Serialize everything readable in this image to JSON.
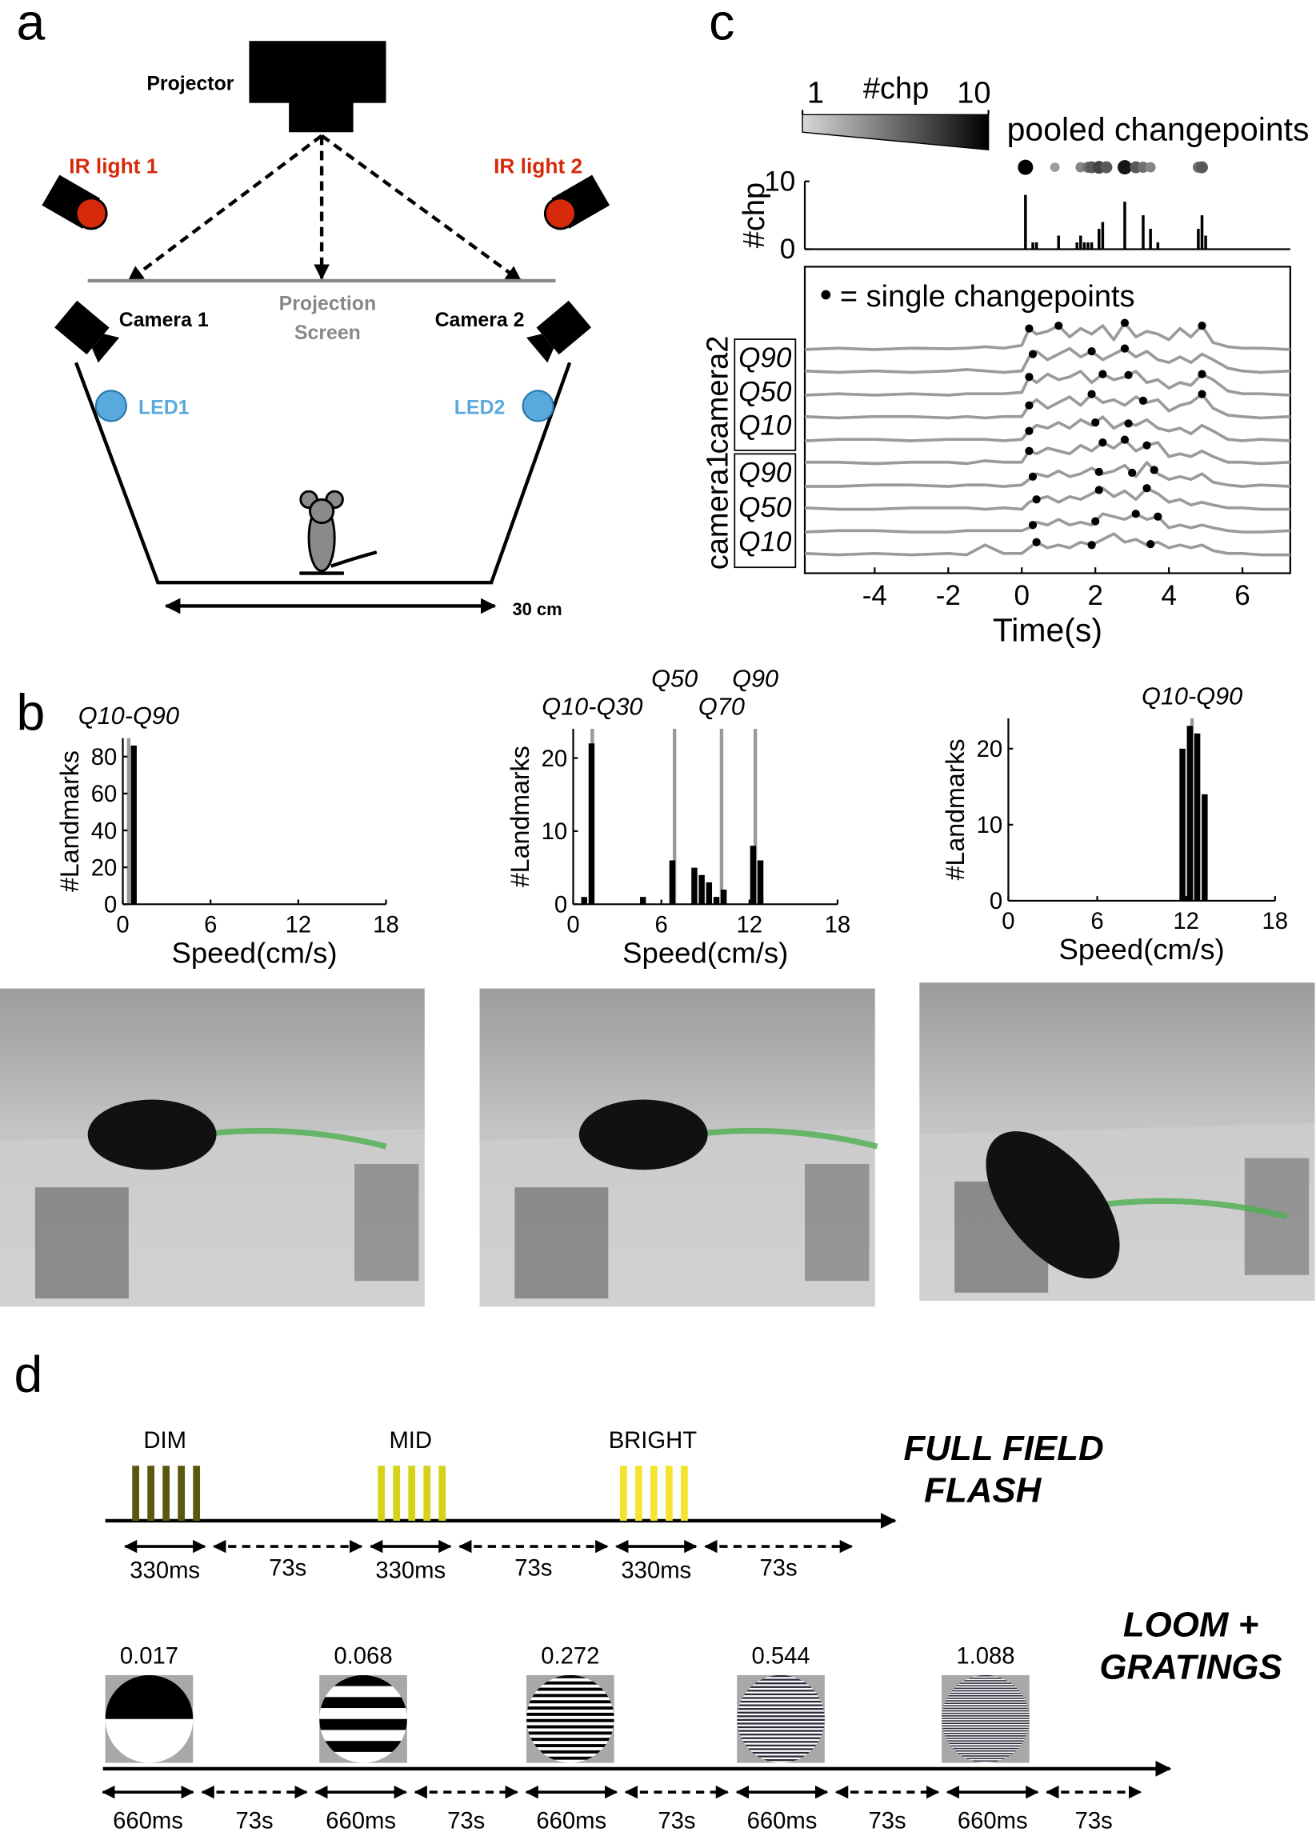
{
  "panel_labels": [
    "a",
    "b",
    "c",
    "d"
  ],
  "setup": {
    "projector": "Projector",
    "ir_lights": [
      "IR light 1",
      "IR light 2"
    ],
    "screen": [
      "Projection",
      "Screen"
    ],
    "cameras": [
      "Camera 1",
      "Camera 2"
    ],
    "leds": [
      "LED1",
      "LED2"
    ],
    "scale": "30 cm"
  },
  "chart_data": [
    {
      "type": "histogram",
      "ylabel": "#Landmarks",
      "xlabel": "Speed(cm/s)",
      "xlim": [
        0,
        18
      ],
      "xticks": [
        0,
        6,
        12,
        18
      ],
      "ylim": [
        0,
        90
      ],
      "yticks": [
        0,
        20,
        40,
        60,
        80
      ],
      "bins": [
        0,
        0.5,
        1,
        1.5,
        2,
        2.5,
        3,
        3.5,
        4,
        4.5,
        5,
        5.5,
        6,
        6.5,
        7,
        7.5,
        8,
        8.5,
        9,
        9.5,
        10,
        10.5,
        11,
        11.5,
        12,
        12.5,
        13,
        13.5,
        14,
        14.5,
        15,
        15.5,
        16,
        16.5,
        17,
        17.5,
        18
      ],
      "counts": [
        0,
        86,
        0,
        0,
        0,
        0,
        0,
        0,
        0,
        0,
        0,
        0,
        0,
        0,
        0,
        0,
        0,
        0,
        0,
        0,
        0,
        0,
        0,
        0,
        0,
        0,
        0,
        0,
        0,
        0,
        0,
        0,
        0,
        0,
        0,
        0
      ],
      "color": "#000000",
      "quantile_color": "#9a9a9a",
      "quantiles": [
        {
          "x": 0.4,
          "label": "Q10-Q90"
        }
      ]
    },
    {
      "type": "histogram",
      "ylabel": "#Landmarks",
      "xlabel": "Speed(cm/s)",
      "xlim": [
        0,
        18
      ],
      "xticks": [
        0,
        6,
        12,
        18
      ],
      "ylim": [
        0,
        24
      ],
      "yticks": [
        0,
        10,
        20
      ],
      "bins": [
        0,
        0.5,
        1,
        1.5,
        2,
        2.5,
        3,
        3.5,
        4,
        4.5,
        5,
        5.5,
        6,
        6.5,
        7,
        7.5,
        8,
        8.5,
        9,
        9.5,
        10,
        10.5,
        11,
        11.5,
        12,
        12.5,
        13,
        13.5,
        14,
        14.5,
        15,
        15.5,
        16,
        16.5,
        17,
        17.5,
        18
      ],
      "counts": [
        0,
        1,
        22,
        0,
        0,
        0,
        0,
        0,
        0,
        1,
        0,
        0,
        0,
        6,
        0,
        0,
        5,
        4,
        3,
        1,
        2,
        0,
        0,
        0,
        8,
        6,
        0,
        0,
        0,
        0,
        0,
        0,
        0,
        0,
        0,
        0
      ],
      "color": "#000000",
      "quantile_color": "#9a9a9a",
      "quantiles": [
        {
          "x": 1.3,
          "label": "Q10-Q30"
        },
        {
          "x": 6.9,
          "label": "Q50"
        },
        {
          "x": 10.1,
          "label": "Q70"
        },
        {
          "x": 12.4,
          "label": "Q90"
        }
      ]
    },
    {
      "type": "histogram",
      "ylabel": "#Landmarks",
      "xlabel": "Speed(cm/s)",
      "xlim": [
        0,
        18
      ],
      "xticks": [
        0,
        6,
        12,
        18
      ],
      "ylim": [
        0,
        24
      ],
      "yticks": [
        0,
        10,
        20
      ],
      "bins": [
        0,
        0.5,
        1,
        1.5,
        2,
        2.5,
        3,
        3.5,
        4,
        4.5,
        5,
        5.5,
        6,
        6.5,
        7,
        7.5,
        8,
        8.5,
        9,
        9.5,
        10,
        10.5,
        11,
        11.5,
        12,
        12.5,
        13,
        13.5,
        14,
        14.5,
        15,
        15.5,
        16,
        16.5,
        17,
        17.5,
        18
      ],
      "counts": [
        0,
        0,
        0,
        0,
        0,
        0,
        0,
        0,
        0,
        0,
        0,
        0,
        0,
        0,
        0,
        0,
        0,
        0,
        0,
        0,
        0,
        0,
        0,
        20,
        23,
        22,
        14,
        0,
        0,
        0,
        0,
        0,
        0,
        0,
        0,
        0
      ],
      "color": "#000000",
      "quantile_color": "#9a9a9a",
      "quantiles": [
        {
          "x": 12.4,
          "label": "Q10-Q90"
        }
      ]
    },
    {
      "type": "scatter",
      "title": "pooled changepoints",
      "colorbar": {
        "label": "#chp",
        "ticks": [
          1,
          10
        ]
      },
      "x": [
        0.1,
        0.9,
        1.6,
        1.8,
        1.9,
        2.1,
        2.3,
        2.8,
        3.1,
        3.3,
        3.5,
        4.8,
        4.9
      ],
      "values": [
        10,
        3,
        4,
        5,
        6,
        7,
        6,
        9,
        6,
        5,
        4,
        5,
        6
      ]
    },
    {
      "type": "bar",
      "ylabel": "#chp",
      "ylim": [
        0,
        10
      ],
      "yticks": [
        0,
        10
      ],
      "color": "#000000",
      "x": [
        0.1,
        0.3,
        0.4,
        1.0,
        1.5,
        1.6,
        1.7,
        1.8,
        1.9,
        2.1,
        2.2,
        2.8,
        3.3,
        3.5,
        3.7,
        4.8,
        4.9,
        5.0
      ],
      "values": [
        8,
        1,
        1,
        2,
        1,
        2,
        1,
        1,
        1,
        3,
        4,
        7,
        5,
        3,
        1,
        3,
        5,
        2
      ]
    },
    {
      "type": "line",
      "xlabel": "Time(s)",
      "xlim": [
        -5.9,
        7.3
      ],
      "xticks": [
        -4,
        -2,
        0,
        2,
        4,
        6
      ],
      "legend": "= single changepoints",
      "color": "#9a9a9a",
      "groups": [
        {
          "name": "camera2",
          "labels": [
            "Q90",
            "Q50",
            "Q10"
          ]
        },
        {
          "name": "camera1",
          "labels": [
            "Q90",
            "Q50",
            "Q10"
          ]
        }
      ],
      "x": [
        -5.9,
        -5,
        -4,
        -3,
        -2,
        -1.5,
        -1,
        -0.5,
        0,
        0.2,
        0.4,
        0.7,
        1,
        1.3,
        1.6,
        1.9,
        2.2,
        2.5,
        2.8,
        3.1,
        3.4,
        3.7,
        4,
        4.3,
        4.6,
        4.9,
        5.2,
        5.6,
        6,
        6.5,
        7.3
      ],
      "traces": [
        {
          "values": [
            0.05,
            0.1,
            0.05,
            0.1,
            0.08,
            0.1,
            0.15,
            0.1,
            0.2,
            0.8,
            0.6,
            0.7,
            0.9,
            0.5,
            0.8,
            0.6,
            0.9,
            0.4,
            1.0,
            0.5,
            0.7,
            0.6,
            0.4,
            0.8,
            0.5,
            0.9,
            0.3,
            0.15,
            0.1,
            0.1,
            0.05
          ],
          "changepoints": [
            0.2,
            1.0,
            2.8,
            4.9
          ]
        },
        {
          "values": [
            0.1,
            0.05,
            0.1,
            0.05,
            0.1,
            0.15,
            0.1,
            0.05,
            0.1,
            0.6,
            0.8,
            0.5,
            0.7,
            0.9,
            0.6,
            0.8,
            0.5,
            0.7,
            0.9,
            0.6,
            0.8,
            0.5,
            0.4,
            0.6,
            0.4,
            0.7,
            0.5,
            0.2,
            0.1,
            0.05,
            0.1
          ],
          "changepoints": [
            0.3,
            1.9,
            2.8
          ]
        },
        {
          "values": [
            0.05,
            0.1,
            0.05,
            0.1,
            0.05,
            0.1,
            0.1,
            0.1,
            0.15,
            0.7,
            0.5,
            0.8,
            0.6,
            0.7,
            0.9,
            0.5,
            0.8,
            0.6,
            0.7,
            0.9,
            0.5,
            0.6,
            0.3,
            0.5,
            0.4,
            0.8,
            0.6,
            0.2,
            0.1,
            0.1,
            0.05
          ],
          "changepoints": [
            0.2,
            2.2,
            2.9,
            4.9
          ]
        },
        {
          "values": [
            0.1,
            0.05,
            0.1,
            0.1,
            0.05,
            0.1,
            0.05,
            0.1,
            0.1,
            0.5,
            0.7,
            0.4,
            0.6,
            0.8,
            0.5,
            0.9,
            0.6,
            0.7,
            0.5,
            0.8,
            0.6,
            0.7,
            0.3,
            0.5,
            0.6,
            0.9,
            0.4,
            0.15,
            0.1,
            0.05,
            0.1
          ],
          "changepoints": [
            0.2,
            1.9,
            3.3,
            4.9
          ]
        },
        {
          "values": [
            0.05,
            0.1,
            0.1,
            0.05,
            0.1,
            0.1,
            0.1,
            0.05,
            0.1,
            0.4,
            0.6,
            0.5,
            0.7,
            0.5,
            0.8,
            0.6,
            0.9,
            0.5,
            0.7,
            0.6,
            0.8,
            0.5,
            0.4,
            0.5,
            0.3,
            0.6,
            0.4,
            0.1,
            0.05,
            0.1,
            0.05
          ],
          "changepoints": [
            0.2,
            2.0,
            2.9
          ]
        },
        {
          "values": [
            0.1,
            0.1,
            0.05,
            0.1,
            0.1,
            0.05,
            0.15,
            0.1,
            0.1,
            0.5,
            0.4,
            0.6,
            0.5,
            0.4,
            0.7,
            0.5,
            0.8,
            0.6,
            0.9,
            0.5,
            0.7,
            0.8,
            0.3,
            0.4,
            0.3,
            0.5,
            0.3,
            0.1,
            0.1,
            0.05,
            0.1
          ],
          "changepoints": [
            0.2,
            2.2,
            2.8,
            3.4
          ]
        },
        {
          "values": [
            0.05,
            0.05,
            0.1,
            0.1,
            0.05,
            0.1,
            0.1,
            0.05,
            0.1,
            0.3,
            0.5,
            0.4,
            0.6,
            0.4,
            0.5,
            0.7,
            0.5,
            0.6,
            0.8,
            0.4,
            0.9,
            0.5,
            0.3,
            0.4,
            0.3,
            0.5,
            0.2,
            0.1,
            0.05,
            0.1,
            0.05
          ],
          "changepoints": [
            0.3,
            2.1,
            3.0,
            3.6
          ]
        },
        {
          "values": [
            0.1,
            0.05,
            0.05,
            0.1,
            0.1,
            0.1,
            0.05,
            0.1,
            0.05,
            0.3,
            0.4,
            0.5,
            0.3,
            0.5,
            0.4,
            0.6,
            0.8,
            0.5,
            0.7,
            0.4,
            0.8,
            0.6,
            0.3,
            0.4,
            0.2,
            0.3,
            0.2,
            0.1,
            0.1,
            0.05,
            0.05
          ],
          "changepoints": [
            0.4,
            2.1,
            3.4
          ]
        },
        {
          "values": [
            0.05,
            0.1,
            0.1,
            0.05,
            0.05,
            0.1,
            0.1,
            0.1,
            0.1,
            0.2,
            0.4,
            0.3,
            0.5,
            0.3,
            0.4,
            0.3,
            0.7,
            0.6,
            0.5,
            0.7,
            0.5,
            0.6,
            0.2,
            0.3,
            0.2,
            0.3,
            0.2,
            0.1,
            0.05,
            0.05,
            0.1
          ],
          "changepoints": [
            0.3,
            2.0,
            3.1,
            3.7
          ]
        },
        {
          "values": [
            0.1,
            0.05,
            0.1,
            0.05,
            0.1,
            0.05,
            0.4,
            0.1,
            0.1,
            0.3,
            0.5,
            0.3,
            0.4,
            0.3,
            0.5,
            0.4,
            0.6,
            0.8,
            0.5,
            0.6,
            0.4,
            0.5,
            0.3,
            0.4,
            0.3,
            0.4,
            0.2,
            0.1,
            0.1,
            0.05,
            0.05
          ],
          "changepoints": [
            0.4,
            1.9,
            3.5
          ]
        }
      ]
    }
  ],
  "protocol": {
    "flash": {
      "title": [
        "FULL FIELD",
        "FLASH"
      ],
      "levels": [
        "DIM",
        "MID",
        "BRIGHT"
      ],
      "colors": [
        "#5a5810",
        "#d6d21a",
        "#f4e430"
      ],
      "durations": [
        "330ms",
        "330ms",
        "330ms"
      ],
      "intervals": [
        "73s",
        "73s",
        "73s"
      ]
    },
    "loom": {
      "title": [
        "LOOM +",
        "GRATINGS"
      ],
      "values": [
        "0.017",
        "0.068",
        "0.272",
        "0.544",
        "1.088"
      ],
      "durations": [
        "660ms",
        "660ms",
        "660ms",
        "660ms",
        "660ms"
      ],
      "intervals": [
        "73s",
        "73s",
        "73s",
        "73s",
        "73s"
      ]
    }
  }
}
